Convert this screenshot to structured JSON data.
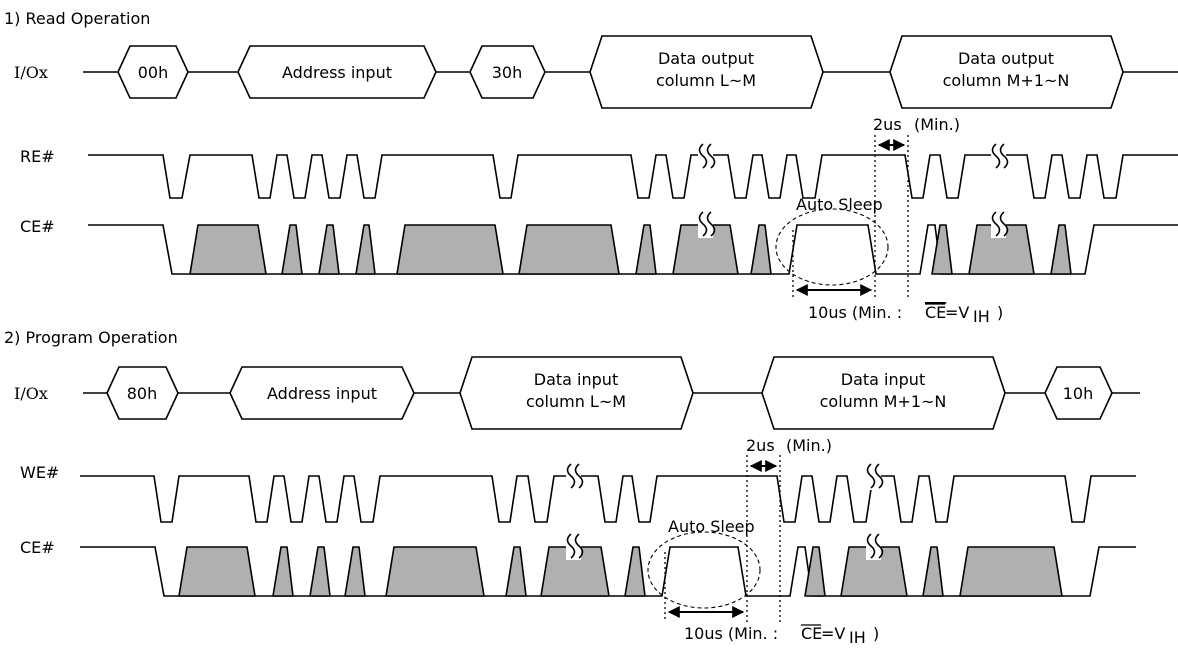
{
  "sections": {
    "read": {
      "title": "1) Read Operation",
      "io_label": "I/Ox",
      "io_values": [
        "00h",
        "Address input",
        "30h",
        "Data output",
        "column L~M",
        "Data output",
        "column M+1~N"
      ],
      "strobe_label": "RE#",
      "ce_label": "CE#",
      "auto_sleep": "Auto Sleep",
      "t2": "2us",
      "t2_min": "(Min.)",
      "t10": "10us (Min. :",
      "ce_bar": "CE",
      "eq_v": "=V",
      "sub": "IH",
      "close": ")"
    },
    "program": {
      "title": "2) Program Operation",
      "io_label": "I/Ox",
      "io_values": [
        "80h",
        "Address input",
        "Data input",
        "column L~M",
        "Data input",
        "column M+1~N",
        "10h"
      ],
      "strobe_label": "WE#",
      "ce_label": "CE#",
      "auto_sleep": "Auto Sleep",
      "t2": "2us",
      "t2_min": "(Min.)",
      "t10": "10us (Min. :",
      "ce_bar": "CE",
      "eq_v": "=V",
      "sub": "IH",
      "close": ")"
    }
  }
}
